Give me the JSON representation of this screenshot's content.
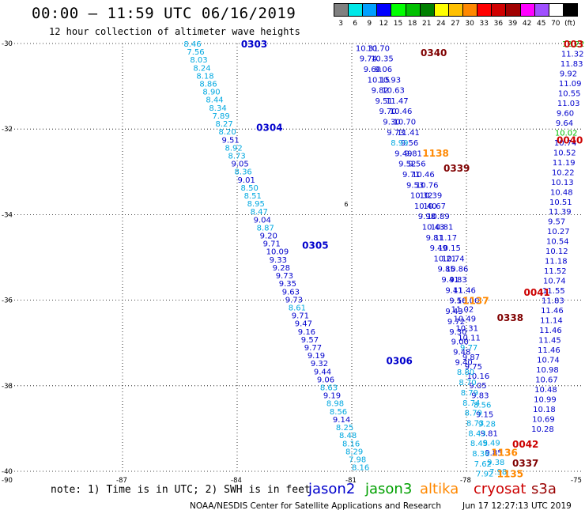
{
  "header": {
    "title": "00:00 – 11:59 UTC 06/16/2019",
    "subtitle": "12 hour collection of altimeter wave heights"
  },
  "colorbar": {
    "colors": [
      "#808080",
      "#00e8e8",
      "#00a0ff",
      "#0000ff",
      "#00ff00",
      "#00c000",
      "#008000",
      "#ffff00",
      "#ffc000",
      "#ff8800",
      "#ff0000",
      "#d00000",
      "#a00000",
      "#ff00ff",
      "#a050ff",
      "#ffffff",
      "#000000"
    ],
    "labels": [
      "3",
      "6",
      "9",
      "12",
      "15",
      "18",
      "21",
      "24",
      "27",
      "30",
      "33",
      "36",
      "39",
      "42",
      "45",
      "70",
      "(ft)"
    ]
  },
  "footer": {
    "note": "note: 1) Time is in UTC; 2) SWH is in feet",
    "legend": [
      {
        "name": "jason2",
        "color": "#0000cc"
      },
      {
        "name": "jason3",
        "color": "#00a000"
      },
      {
        "name": "altika",
        "color": "#ff8800"
      },
      {
        "name": "cryosat",
        "color": "#cc0000"
      },
      {
        "name": "s3a",
        "color": "#990000"
      }
    ],
    "credit": "NOAA/NESDIS Center for Satellite Applications and Research",
    "timestamp": "Jun 17 12:27:13 UTC 2019"
  },
  "chart_data": {
    "type": "scatter",
    "title": "00:00 – 11:59 UTC 06/16/2019",
    "subtitle": "12 hour collection of altimeter wave heights",
    "xlabel": "",
    "ylabel": "",
    "xlim": [
      -90,
      -75
    ],
    "ylim": [
      -40,
      -30
    ],
    "x_ticks": [
      -87,
      -84,
      -81,
      -78,
      -75
    ],
    "x_tick_labels": [
      "-87",
      "-84",
      "-81",
      "-78",
      "-75"
    ],
    "y_ticks": [
      -30,
      -32,
      -34,
      -36,
      -38,
      -40
    ],
    "y_tick_labels": [
      "-30",
      "-32",
      "-34",
      "-36",
      "-38",
      "-40"
    ],
    "grid": true,
    "colors": {
      "cyan": "#00a8e0",
      "blue": "#0000cc",
      "green": "#00c000",
      "orange": "#ff8800",
      "dark": "#800000",
      "red": "#cc0000"
    },
    "pass_labels": [
      {
        "text": "0303",
        "lon": -83.9,
        "lat": -30.0,
        "color": "#0000cc"
      },
      {
        "text": "0304",
        "lon": -83.5,
        "lat": -31.95,
        "color": "#0000cc"
      },
      {
        "text": "0305",
        "lon": -82.3,
        "lat": -34.7,
        "color": "#0000cc"
      },
      {
        "text": "0306",
        "lon": -80.1,
        "lat": -37.4,
        "color": "#0000cc"
      },
      {
        "text": "0340",
        "lon": -79.2,
        "lat": -30.2,
        "color": "#800000"
      },
      {
        "text": "1138",
        "lon": -79.15,
        "lat": -32.55,
        "color": "#ff8800"
      },
      {
        "text": "0339",
        "lon": -78.6,
        "lat": -32.9,
        "color": "#800000"
      },
      {
        "text": "1137",
        "lon": -78.1,
        "lat": -36.0,
        "color": "#ff8800"
      },
      {
        "text": "0338",
        "lon": -77.2,
        "lat": -36.4,
        "color": "#800000"
      },
      {
        "text": "0040",
        "lon": -75.25,
        "lat": -32.25,
        "color": "#cc0000"
      },
      {
        "text": "003",
        "lon": -75.1,
        "lat": -30.0,
        "color": "#cc0000"
      },
      {
        "text": "0041",
        "lon": -76.5,
        "lat": -35.8,
        "color": "#cc0000"
      },
      {
        "text": "0042",
        "lon": -76.8,
        "lat": -39.35,
        "color": "#cc0000"
      },
      {
        "text": "1136",
        "lon": -77.35,
        "lat": -39.55,
        "color": "#ff8800"
      },
      {
        "text": "0337",
        "lon": -76.8,
        "lat": -39.8,
        "color": "#800000"
      },
      {
        "text": "1135",
        "lon": -77.2,
        "lat": -40.05,
        "color": "#ff8800"
      }
    ],
    "tracks": [
      {
        "id": "0303-0306",
        "lon_start": -85.4,
        "lat_start": -30.0,
        "lon_end": -81.0,
        "lat_end": -39.9,
        "values": [
          "8.46",
          "7.56",
          "8.03",
          "8.24",
          "8.18",
          "8.86",
          "8.90",
          "8.44",
          "8.34",
          "7.89",
          "8.27",
          "8.20",
          "9.51",
          "8.92",
          "8.73",
          "9.05",
          "8.36",
          "9.01",
          "8.50",
          "8.51",
          "8.95",
          "8.47",
          "9.04",
          "8.87",
          "9.20",
          "9.71",
          "10.09",
          "9.33",
          "9.28",
          "9.73",
          "9.35",
          "9.63",
          "9.73",
          "8.61",
          "9.71",
          "9.47",
          "9.16",
          "9.57",
          "9.77",
          "9.19",
          "9.32",
          "9.44",
          "9.06",
          "8.63",
          "9.19",
          "8.98",
          "8.56",
          "9.14",
          "8.25",
          "8.48",
          "8.16",
          "8.29",
          "7.98",
          "8.16"
        ],
        "colors": [
          "c",
          "c",
          "c",
          "c",
          "c",
          "c",
          "c",
          "c",
          "c",
          "c",
          "c",
          "c",
          "b",
          "c",
          "c",
          "b",
          "c",
          "b",
          "c",
          "c",
          "c",
          "c",
          "b",
          "c",
          "b",
          "b",
          "b",
          "b",
          "b",
          "b",
          "b",
          "b",
          "b",
          "c",
          "b",
          "b",
          "b",
          "b",
          "b",
          "b",
          "b",
          "b",
          "b",
          "c",
          "b",
          "c",
          "c",
          "b",
          "c",
          "c",
          "c",
          "c",
          "c",
          "c"
        ]
      },
      {
        "id": "0340-a",
        "lon_start": -80.6,
        "lat_start": -30.1,
        "lon_end": -78.25,
        "lat_end": -36.0,
        "values": [
          "10.70",
          "10.35",
          "9.06",
          "10.93",
          "10.63",
          "11.47",
          "10.46",
          "10.70",
          "11.41",
          "9.56",
          "9.81",
          "9.56",
          "10.46",
          "10.76",
          "10.39",
          "10.67",
          "10.89",
          "10.81",
          "11.17",
          "10.15",
          "10.74",
          "10.86",
          "9.83",
          "11.46",
          "10.00"
        ],
        "colors": [
          "b",
          "b",
          "b",
          "b",
          "b",
          "b",
          "b",
          "b",
          "b",
          "b",
          "b",
          "b",
          "b",
          "b",
          "b",
          "b",
          "b",
          "b",
          "b",
          "b",
          "b",
          "b",
          "b",
          "b",
          "b"
        ]
      },
      {
        "id": "0340-b",
        "lon_start": -80.9,
        "lat_start": -30.1,
        "lon_end": -78.45,
        "lat_end": -36.0,
        "values": [
          "10.31",
          "9.74",
          "9.60",
          "10.15",
          "9.82",
          "9.51",
          "9.70",
          "9.30",
          "9.73",
          "8.99",
          "9.49",
          "9.52",
          "9.71",
          "9.53",
          "10.32",
          "10.40",
          "9.98",
          "10.43",
          "9.81",
          "9.49",
          "10.21",
          "9.85",
          "9.41",
          "9.41",
          "9.56"
        ],
        "colors": [
          "b",
          "b",
          "b",
          "b",
          "b",
          "b",
          "b",
          "b",
          "b",
          "c",
          "b",
          "b",
          "b",
          "b",
          "b",
          "b",
          "b",
          "b",
          "b",
          "b",
          "b",
          "b",
          "b",
          "b",
          "b"
        ]
      },
      {
        "id": "0338-a",
        "lon_start": -78.4,
        "lat_start": -36.2,
        "lon_end": -77.4,
        "lat_end": -40.0,
        "values": [
          "11.02",
          "10.49",
          "10.31",
          "10.11",
          "9.77",
          "9.87",
          "9.75",
          "10.16",
          "9.05",
          "9.83",
          "8.56",
          "9.15",
          "9.28",
          "9.81",
          "9.49",
          "9.85",
          "9.38",
          "7.98"
        ],
        "colors": [
          "b",
          "b",
          "b",
          "b",
          "c",
          "b",
          "b",
          "b",
          "b",
          "b",
          "c",
          "b",
          "c",
          "b",
          "c",
          "b",
          "c",
          "c"
        ]
      },
      {
        "id": "0338-b",
        "lon_start": -78.55,
        "lat_start": -36.25,
        "lon_end": -77.75,
        "lat_end": -40.05,
        "values": [
          "9.43",
          "9.72",
          "9.30",
          "9.00",
          "9.48",
          "9.40",
          "8.80",
          "8.70",
          "8.79",
          "8.74",
          "8.79",
          "8.73",
          "8.43",
          "8.45",
          "8.36",
          "7.62",
          "7.92"
        ],
        "colors": [
          "b",
          "b",
          "b",
          "b",
          "b",
          "b",
          "c",
          "c",
          "c",
          "c",
          "c",
          "c",
          "c",
          "c",
          "c",
          "c",
          "c"
        ]
      },
      {
        "id": "0040-0042",
        "lon_start": -75.5,
        "lat_start": -30.0,
        "lon_end": -76.3,
        "lat_end": -39.0,
        "values": [
          "12.22",
          "11.32",
          "11.83",
          "9.92",
          "11.09",
          "10.55",
          "11.03",
          "9.60",
          "9.64",
          "10.02",
          "10.74",
          "10.52",
          "11.19",
          "10.22",
          "10.13",
          "10.48",
          "10.51",
          "11.39",
          "9.57",
          "10.27",
          "10.54",
          "10.12",
          "11.18",
          "11.52",
          "10.74",
          "11.55",
          "11.83",
          "11.46",
          "11.14",
          "11.46",
          "11.45",
          "11.46",
          "10.74",
          "10.98",
          "10.67",
          "10.48",
          "10.99",
          "10.18",
          "10.69",
          "10.28"
        ],
        "colors": [
          "g",
          "b",
          "b",
          "b",
          "b",
          "b",
          "b",
          "b",
          "b",
          "g",
          "b",
          "b",
          "b",
          "b",
          "b",
          "b",
          "b",
          "b",
          "b",
          "b",
          "b",
          "b",
          "b",
          "b",
          "b",
          "b",
          "b",
          "b",
          "b",
          "b",
          "b",
          "b",
          "b",
          "b",
          "b",
          "b",
          "b",
          "b",
          "b",
          "b"
        ]
      }
    ],
    "markers": [
      {
        "text": "6",
        "lon": -81.2,
        "lat": -33.75,
        "color": "#000000"
      }
    ]
  }
}
